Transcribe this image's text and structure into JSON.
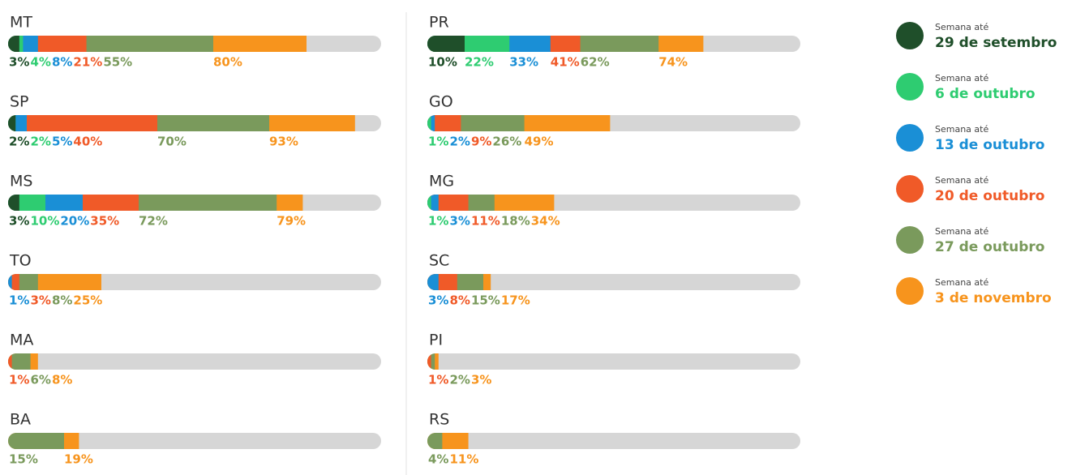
{
  "chart_data": {
    "type": "progress-bar",
    "categories": [
      "MT",
      "SP",
      "MS",
      "TO",
      "MA",
      "BA",
      "PR",
      "GO",
      "MG",
      "SC",
      "PI",
      "RS"
    ],
    "xlim": [
      0,
      100
    ],
    "series_label": "Semana até",
    "series": [
      {
        "name": "29 de setembro",
        "color": "#1f4f2a",
        "values": [
          3,
          2,
          3,
          null,
          null,
          null,
          10,
          null,
          null,
          null,
          null,
          null
        ],
        "value_labels": [
          "3%",
          "2%",
          "3%",
          null,
          null,
          null,
          "10%",
          null,
          null,
          null,
          null,
          null
        ]
      },
      {
        "name": "6 de outubro",
        "color": "#2ecc71",
        "values": [
          4,
          2,
          10,
          null,
          null,
          null,
          22,
          1,
          1,
          null,
          null,
          null
        ],
        "value_labels": [
          "4%",
          "2%",
          "10%",
          null,
          null,
          null,
          "22%",
          "1%",
          "1%",
          null,
          null,
          null
        ]
      },
      {
        "name": "13 de outubro",
        "color": "#1a8fd6",
        "values": [
          8,
          5,
          20,
          1,
          null,
          null,
          33,
          2,
          3,
          3,
          null,
          null
        ],
        "value_labels": [
          "8%",
          "5%",
          "20%",
          "1%",
          null,
          null,
          "33%",
          "2%",
          "3%",
          "3%",
          null,
          null
        ]
      },
      {
        "name": "20 de outubro",
        "color": "#f05a28",
        "values": [
          21,
          40,
          35,
          3,
          1,
          null,
          41,
          9,
          11,
          8,
          1,
          null
        ],
        "value_labels": [
          "21%",
          "40%",
          "35%",
          "3%",
          "1%",
          null,
          "41%",
          "9%",
          "11%",
          "8%",
          "1%",
          null
        ]
      },
      {
        "name": "27 de outubro",
        "color": "#7a9a5c",
        "values": [
          55,
          70,
          72,
          8,
          6,
          15,
          62,
          26,
          18,
          15,
          2,
          4
        ],
        "value_labels": [
          "55%",
          "70%",
          "72%",
          "8%",
          "6%",
          "15%",
          "62%",
          "26%",
          "18%",
          "15%",
          "2%",
          "4%"
        ]
      },
      {
        "name": "3 de novembro",
        "color": "#f7941d",
        "values": [
          80,
          93,
          79,
          25,
          8,
          19,
          74,
          49,
          34,
          17,
          3,
          11
        ],
        "value_labels": [
          "80%",
          "93%",
          "79%",
          "25%",
          "8%",
          "19%",
          "74%",
          "49%",
          "34%",
          "17%",
          "3%",
          "11%"
        ]
      }
    ]
  }
}
